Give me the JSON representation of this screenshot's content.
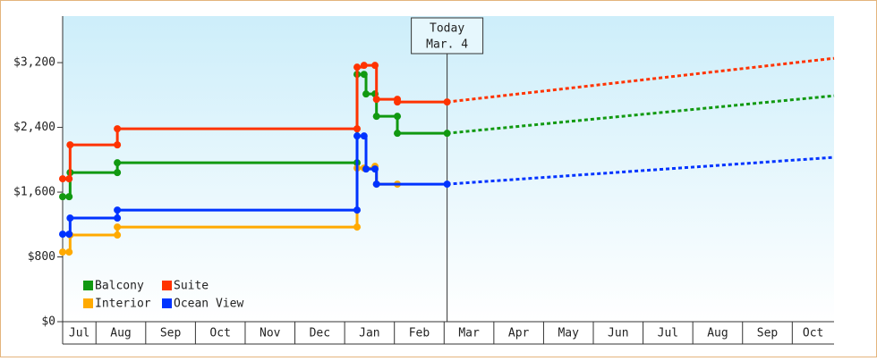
{
  "chart_data": {
    "type": "step",
    "xlim": [
      0.33,
      15.84
    ],
    "xticks": [
      {
        "value": 0.5,
        "label": "Jul"
      },
      {
        "value": 1.5,
        "label": "Aug"
      },
      {
        "value": 2.5,
        "label": "Sep"
      },
      {
        "value": 3.5,
        "label": "Oct"
      },
      {
        "value": 4.5,
        "label": "Nov"
      },
      {
        "value": 5.5,
        "label": "Dec"
      },
      {
        "value": 6.5,
        "label": "Jan"
      },
      {
        "value": 7.5,
        "label": "Feb"
      },
      {
        "value": 8.5,
        "label": "Mar"
      },
      {
        "value": 9.5,
        "label": "Apr"
      },
      {
        "value": 10.5,
        "label": "May"
      },
      {
        "value": 11.5,
        "label": "Jun"
      },
      {
        "value": 12.5,
        "label": "Jul"
      },
      {
        "value": 13.5,
        "label": "Aug"
      },
      {
        "value": 14.5,
        "label": "Sep"
      },
      {
        "value": 15.5,
        "label": "Oct"
      }
    ],
    "ylim": [
      0,
      3775
    ],
    "yticks": [
      {
        "value": 0,
        "label": "$0"
      },
      {
        "value": 800,
        "label": "$800"
      },
      {
        "value": 1600,
        "label": "$1,600"
      },
      {
        "value": 2400,
        "label": "$2,400"
      },
      {
        "value": 3200,
        "label": "$3,200"
      }
    ],
    "today": {
      "x": 8.06,
      "label": [
        "Today",
        "Mar. 4"
      ]
    },
    "legend": "lower left",
    "series": [
      {
        "name": "Balcony",
        "color": "#119911",
        "x": [
          0.33,
          0.46,
          0.48,
          1.43,
          1.43,
          6.25,
          6.25,
          6.39,
          6.43,
          6.61,
          6.64,
          7.06,
          7.06,
          8.06
        ],
        "values": [
          1544,
          1544,
          1842,
          1842,
          1963,
          1963,
          3055,
          3055,
          2813,
          2813,
          2537,
          2537,
          2327,
          2327
        ],
        "projection": {
          "x": [
            8.06,
            15.84
          ],
          "values": [
            2327,
            2791
          ]
        }
      },
      {
        "name": "Suite",
        "color": "#ff3300",
        "x": [
          0.33,
          0.46,
          0.48,
          1.43,
          1.43,
          6.25,
          6.25,
          6.39,
          6.61,
          6.64,
          7.06,
          7.06,
          8.06
        ],
        "values": [
          1765,
          1765,
          2184,
          2184,
          2383,
          2383,
          3144,
          3166,
          3166,
          2747,
          2747,
          2714,
          2714
        ],
        "projection": {
          "x": [
            8.06,
            15.84
          ],
          "values": [
            2714,
            3254
          ]
        }
      },
      {
        "name": "Interior",
        "color": "#ffaa00",
        "x": [
          0.33,
          0.46,
          0.48,
          1.43,
          1.43,
          6.25,
          6.25,
          6.39,
          6.61,
          6.64,
          7.06
        ],
        "values": [
          860,
          860,
          1070,
          1070,
          1169,
          1169,
          1897,
          1897,
          1919,
          1699,
          1699
        ]
      },
      {
        "name": "Ocean View",
        "color": "#0033ff",
        "x": [
          0.33,
          0.46,
          0.48,
          1.43,
          1.43,
          6.25,
          6.25,
          6.39,
          6.43,
          6.61,
          6.64,
          8.06
        ],
        "values": [
          1081,
          1081,
          1280,
          1280,
          1379,
          1379,
          2294,
          2294,
          1886,
          1886,
          1699,
          1699
        ],
        "projection": {
          "x": [
            8.06,
            15.84
          ],
          "values": [
            1699,
            2030
          ]
        }
      }
    ]
  }
}
